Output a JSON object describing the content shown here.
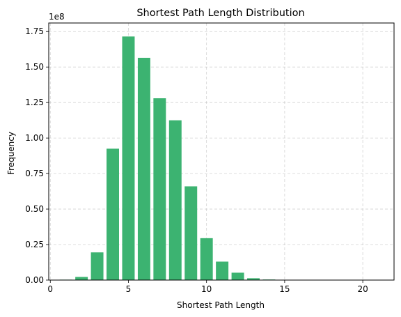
{
  "chart_data": {
    "type": "bar",
    "title": "Shortest Path Length Distribution",
    "xlabel": "Shortest Path Length",
    "ylabel": "Frequency",
    "y_offset_label": "1e8",
    "y_scale": 100000000,
    "bar_color": "#3cb371",
    "xlim": [
      -0.1,
      22.0
    ],
    "ylim": [
      0,
      1.81
    ],
    "x_ticks": [
      0,
      5,
      10,
      15,
      20
    ],
    "y_ticks": [
      0.0,
      0.25,
      0.5,
      0.75,
      1.0,
      1.25,
      1.5,
      1.75
    ],
    "y_tick_labels": [
      "0.00",
      "0.25",
      "0.50",
      "0.75",
      "1.00",
      "1.25",
      "1.50",
      "1.75"
    ],
    "grid": true,
    "bar_width": 0.8,
    "x": [
      1,
      2,
      3,
      4,
      5,
      6,
      7,
      8,
      9,
      10,
      11,
      12,
      13,
      14,
      15,
      16,
      17,
      18,
      19,
      20,
      21
    ],
    "values": [
      0.003,
      0.022,
      0.195,
      0.925,
      1.715,
      1.565,
      1.28,
      1.125,
      0.66,
      0.295,
      0.13,
      0.052,
      0.013,
      0.004,
      0.002,
      0.001,
      0.0005,
      0.0003,
      0.0002,
      0.0001,
      0.0001
    ]
  }
}
